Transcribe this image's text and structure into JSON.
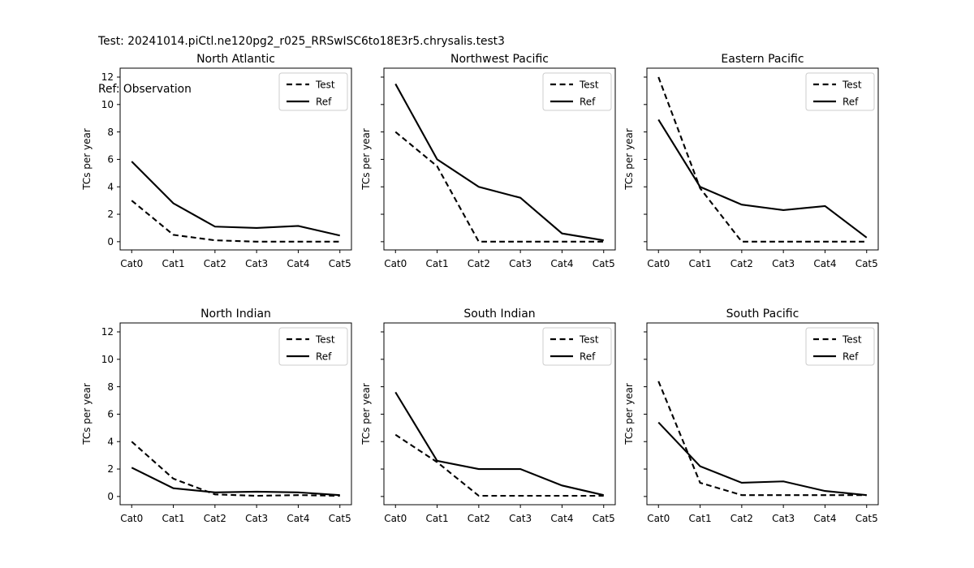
{
  "header": {
    "test_line": "Test: 20241014.piCtl.ne120pg2_r025_RRSwISC6to18E3r5.chrysalis.test3",
    "ref_line": "Ref: Observation"
  },
  "colors": {
    "line": "#000000",
    "axis": "#000000",
    "legend_border": "#cccccc",
    "background": "#ffffff"
  },
  "chart_data": [
    {
      "type": "line",
      "title": "North Atlantic",
      "ylabel": "TCs per year",
      "xlabel": "",
      "categories": [
        "Cat0",
        "Cat1",
        "Cat2",
        "Cat3",
        "Cat4",
        "Cat5"
      ],
      "yticks": [
        0,
        2,
        4,
        6,
        8,
        10,
        12
      ],
      "ylim": [
        -0.6,
        12.65
      ],
      "grid": false,
      "show_ytick_labels": true,
      "legend_position": "upper right",
      "series": [
        {
          "name": "Test",
          "style": "dashed",
          "values": [
            3.0,
            0.5,
            0.1,
            0.0,
            0.0,
            0.0
          ]
        },
        {
          "name": "Ref",
          "style": "solid",
          "values": [
            5.85,
            2.8,
            1.1,
            1.0,
            1.15,
            0.45
          ]
        }
      ]
    },
    {
      "type": "line",
      "title": "Northwest Pacific",
      "ylabel": "TCs per year",
      "xlabel": "",
      "categories": [
        "Cat0",
        "Cat1",
        "Cat2",
        "Cat3",
        "Cat4",
        "Cat5"
      ],
      "yticks": [
        0,
        2,
        4,
        6,
        8,
        10,
        12
      ],
      "ylim": [
        -0.6,
        12.65
      ],
      "grid": false,
      "show_ytick_labels": false,
      "legend_position": "upper right",
      "series": [
        {
          "name": "Test",
          "style": "dashed",
          "values": [
            8.0,
            5.5,
            0.0,
            0.0,
            0.0,
            0.0
          ]
        },
        {
          "name": "Ref",
          "style": "solid",
          "values": [
            11.5,
            6.0,
            4.0,
            3.2,
            0.6,
            0.1
          ]
        }
      ]
    },
    {
      "type": "line",
      "title": "Eastern Pacific",
      "ylabel": "TCs per year",
      "xlabel": "",
      "categories": [
        "Cat0",
        "Cat1",
        "Cat2",
        "Cat3",
        "Cat4",
        "Cat5"
      ],
      "yticks": [
        0,
        2,
        4,
        6,
        8,
        10,
        12
      ],
      "ylim": [
        -0.6,
        12.65
      ],
      "grid": false,
      "show_ytick_labels": false,
      "legend_position": "upper right",
      "series": [
        {
          "name": "Test",
          "style": "dashed",
          "values": [
            12.0,
            3.9,
            0.0,
            0.0,
            0.0,
            0.0
          ]
        },
        {
          "name": "Ref",
          "style": "solid",
          "values": [
            8.9,
            4.0,
            2.7,
            2.3,
            2.6,
            0.3
          ]
        }
      ]
    },
    {
      "type": "line",
      "title": "North Indian",
      "ylabel": "TCs per year",
      "xlabel": "",
      "categories": [
        "Cat0",
        "Cat1",
        "Cat2",
        "Cat3",
        "Cat4",
        "Cat5"
      ],
      "yticks": [
        0,
        2,
        4,
        6,
        8,
        10,
        12
      ],
      "ylim": [
        -0.6,
        12.65
      ],
      "grid": false,
      "show_ytick_labels": true,
      "legend_position": "upper right",
      "series": [
        {
          "name": "Test",
          "style": "dashed",
          "values": [
            4.0,
            1.3,
            0.15,
            0.05,
            0.1,
            0.05
          ]
        },
        {
          "name": "Ref",
          "style": "solid",
          "values": [
            2.1,
            0.6,
            0.3,
            0.35,
            0.3,
            0.1
          ]
        }
      ]
    },
    {
      "type": "line",
      "title": "South Indian",
      "ylabel": "TCs per year",
      "xlabel": "",
      "categories": [
        "Cat0",
        "Cat1",
        "Cat2",
        "Cat3",
        "Cat4",
        "Cat5"
      ],
      "yticks": [
        0,
        2,
        4,
        6,
        8,
        10,
        12
      ],
      "ylim": [
        -0.6,
        12.65
      ],
      "grid": false,
      "show_ytick_labels": false,
      "legend_position": "upper right",
      "series": [
        {
          "name": "Test",
          "style": "dashed",
          "values": [
            4.5,
            2.5,
            0.05,
            0.05,
            0.05,
            0.05
          ]
        },
        {
          "name": "Ref",
          "style": "solid",
          "values": [
            7.6,
            2.6,
            2.0,
            2.0,
            0.8,
            0.1
          ]
        }
      ]
    },
    {
      "type": "line",
      "title": "South Pacific",
      "ylabel": "TCs per year",
      "xlabel": "",
      "categories": [
        "Cat0",
        "Cat1",
        "Cat2",
        "Cat3",
        "Cat4",
        "Cat5"
      ],
      "yticks": [
        0,
        2,
        4,
        6,
        8,
        10,
        12
      ],
      "ylim": [
        -0.6,
        12.65
      ],
      "grid": false,
      "show_ytick_labels": false,
      "legend_position": "upper right",
      "series": [
        {
          "name": "Test",
          "style": "dashed",
          "values": [
            8.4,
            1.0,
            0.1,
            0.1,
            0.1,
            0.1
          ]
        },
        {
          "name": "Ref",
          "style": "solid",
          "values": [
            5.4,
            2.2,
            1.0,
            1.1,
            0.4,
            0.1
          ]
        }
      ]
    }
  ]
}
